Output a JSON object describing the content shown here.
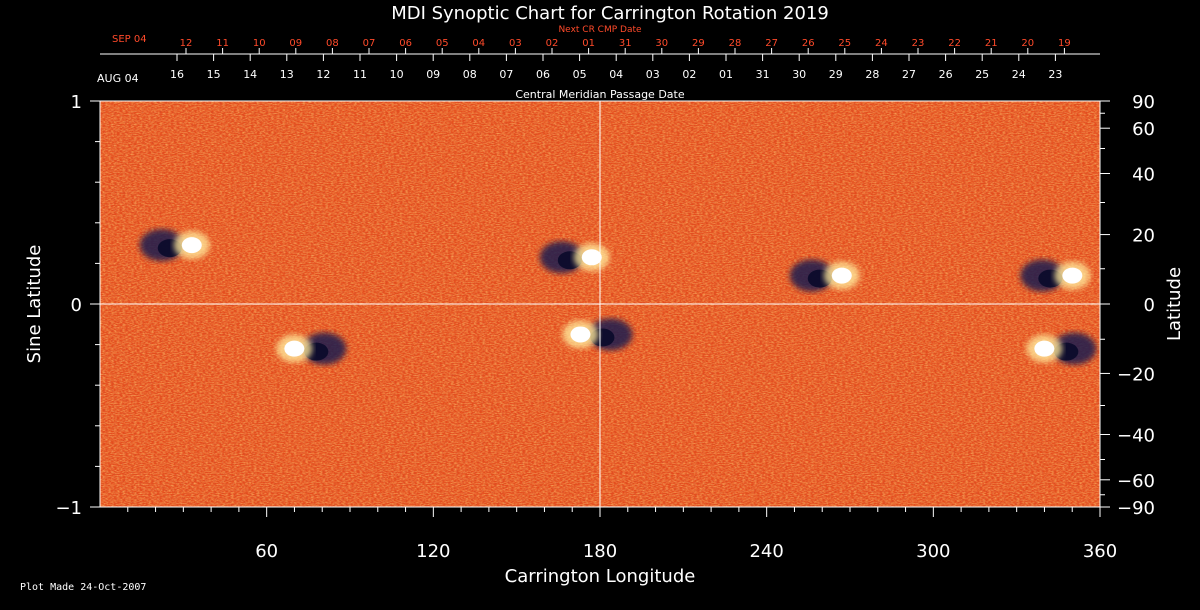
{
  "chart_data": {
    "type": "heatmap",
    "title": "MDI Synoptic Chart for Carrington Rotation 2019",
    "xlabel": "Carrington Longitude",
    "ylabel_left": "Sine Latitude",
    "ylabel_right": "Latitude",
    "xlim": [
      0,
      360
    ],
    "ylim": [
      -1,
      1
    ],
    "x_ticks": [
      "60",
      "120",
      "180",
      "240",
      "300",
      "360"
    ],
    "y_ticks_left": [
      "1",
      "0",
      "−1"
    ],
    "y_ticks_right": [
      "90",
      "60",
      "40",
      "20",
      "0",
      "−20",
      "−40",
      "−60",
      "−90"
    ],
    "next_cr_label": "Next CR CMP Date",
    "next_cr_start": "SEP 04",
    "next_cr_dates": [
      "12",
      "11",
      "10",
      "09",
      "08",
      "07",
      "06",
      "05",
      "04",
      "03",
      "02",
      "01",
      "31",
      "30",
      "29",
      "28",
      "27",
      "26",
      "25",
      "24",
      "23",
      "22",
      "21",
      "20",
      "19"
    ],
    "cmp_label": "Central Meridian Passage Date",
    "cmp_start": "AUG 04",
    "cmp_dates": [
      "16",
      "15",
      "14",
      "13",
      "12",
      "11",
      "10",
      "09",
      "08",
      "07",
      "06",
      "05",
      "04",
      "03",
      "02",
      "01",
      "31",
      "30",
      "29",
      "28",
      "27",
      "26",
      "25",
      "24",
      "23"
    ],
    "footer": "Plot Made 24-Oct-2007",
    "colors": {
      "background": "#e8501c",
      "positive": "#ffffff",
      "negative": "#1a1a50",
      "grid": "#ffffff",
      "next_cr_text": "#ff4a2a"
    },
    "active_regions": [
      {
        "lon": 28,
        "sinlat": 0.29,
        "positive_side": "east"
      },
      {
        "lon": 172,
        "sinlat": 0.23,
        "positive_side": "east"
      },
      {
        "lon": 262,
        "sinlat": 0.14,
        "positive_side": "east"
      },
      {
        "lon": 345,
        "sinlat": 0.14,
        "positive_side": "east"
      },
      {
        "lon": 75,
        "sinlat": -0.22,
        "positive_side": "west"
      },
      {
        "lon": 178,
        "sinlat": -0.15,
        "positive_side": "west"
      },
      {
        "lon": 345,
        "sinlat": -0.22,
        "positive_side": "west"
      }
    ]
  }
}
